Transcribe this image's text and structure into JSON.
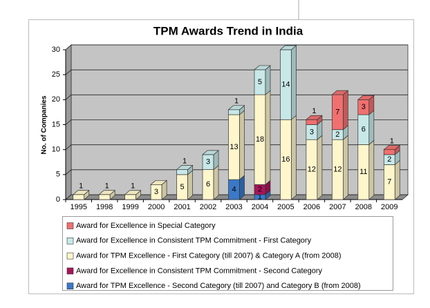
{
  "chart_data": {
    "type": "bar3d_stacked",
    "title": "TPM Awards Trend in India",
    "y_label": "No. of Companies",
    "categories": [
      "1995",
      "1998",
      "1999",
      "2000",
      "2001",
      "2002",
      "2003",
      "2004",
      "2005",
      "2006",
      "2007",
      "2008",
      "2009"
    ],
    "series": [
      {
        "name": "Award for Excellence in Special Category",
        "color": "#f07070",
        "values": [
          null,
          null,
          null,
          null,
          null,
          null,
          null,
          null,
          null,
          1,
          7,
          3,
          1
        ]
      },
      {
        "name": "Award for Excellence in Consistent TPM Commitment - First Category",
        "color": "#c8e8e8",
        "values": [
          null,
          null,
          null,
          null,
          1,
          3,
          1,
          5,
          14,
          3,
          2,
          6,
          2
        ]
      },
      {
        "name": "Award for TPM Excellence - First Category (till 2007) & Category A (from 2008)",
        "color": "#fff6cc",
        "values": [
          1,
          1,
          1,
          3,
          5,
          6,
          13,
          18,
          16,
          12,
          12,
          11,
          7
        ]
      },
      {
        "name": "Award for Excellence in Consistent TPM Commitment - Second Category",
        "color": "#a8145a",
        "values": [
          null,
          null,
          null,
          null,
          null,
          null,
          null,
          2,
          null,
          null,
          null,
          null,
          null
        ]
      },
      {
        "name": "Award for TPM Excellence - Second Category (till 2007) and Category B (from 2008)",
        "color": "#3a78c8",
        "values": [
          null,
          null,
          null,
          null,
          null,
          null,
          4,
          1,
          null,
          null,
          null,
          null,
          null
        ]
      }
    ],
    "ylim": [
      0,
      30
    ],
    "yticks": [
      0,
      5,
      10,
      15,
      20,
      25,
      30
    ],
    "grid": true,
    "legend": "bottom"
  }
}
